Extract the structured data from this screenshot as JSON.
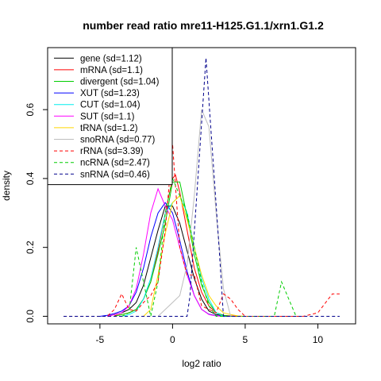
{
  "chart_data": {
    "type": "line",
    "title": "number read ratio mre11-H125.G1.1/xrn1.G1.2",
    "xlabel": "log2 ratio",
    "ylabel": "density",
    "xlim": [
      -8.6,
      12.6
    ],
    "ylim": [
      -0.022,
      0.78
    ],
    "xticks": [
      -5,
      0,
      5,
      10
    ],
    "xtick_labels": [
      "-5",
      "0",
      "5",
      "10"
    ],
    "yticks": [
      0.0,
      0.2,
      0.4,
      0.6
    ],
    "ytick_labels": [
      "0.0",
      "0.2",
      "0.4",
      "0.6"
    ],
    "legend_position": "top-left",
    "series": [
      {
        "name": "gene (sd=1.12)",
        "color": "#000000",
        "dash": "solid",
        "x": [
          -4.5,
          -4,
          -3.5,
          -3,
          -2.5,
          -2,
          -1.5,
          -1,
          -0.5,
          0,
          0.5,
          1,
          1.5,
          2,
          2.5,
          3,
          3.5,
          4,
          5
        ],
        "y": [
          0.0,
          0.005,
          0.01,
          0.02,
          0.04,
          0.09,
          0.17,
          0.25,
          0.32,
          0.32,
          0.27,
          0.19,
          0.11,
          0.05,
          0.015,
          0.005,
          0.002,
          0.0,
          0.0
        ]
      },
      {
        "name": "mRNA (sd=1.1)",
        "color": "#ff0000",
        "dash": "solid",
        "x": [
          -4,
          -3.5,
          -3,
          -2.5,
          -2,
          -1.5,
          -1,
          -0.5,
          0,
          0.2,
          0.5,
          1,
          1.5,
          2,
          2.5,
          3,
          3.5,
          4,
          4.5
        ],
        "y": [
          0.002,
          0.005,
          0.01,
          0.02,
          0.05,
          0.1,
          0.19,
          0.3,
          0.4,
          0.41,
          0.36,
          0.25,
          0.14,
          0.07,
          0.03,
          0.01,
          0.003,
          0.001,
          0.0
        ]
      },
      {
        "name": "divergent (sd=1.04)",
        "color": "#00cd00",
        "dash": "solid",
        "x": [
          -4,
          -3.5,
          -3,
          -2.5,
          -2,
          -1.5,
          -1,
          -0.5,
          0,
          0.5,
          1,
          1.5,
          2,
          2.5,
          3,
          3.5,
          4
        ],
        "y": [
          0.0,
          0.005,
          0.01,
          0.02,
          0.05,
          0.1,
          0.18,
          0.27,
          0.39,
          0.39,
          0.29,
          0.18,
          0.09,
          0.04,
          0.01,
          0.003,
          0.0
        ]
      },
      {
        "name": "XUT (sd=1.23)",
        "color": "#0000ff",
        "dash": "solid",
        "x": [
          -5,
          -4.5,
          -4,
          -3.5,
          -3,
          -2.5,
          -2,
          -1.5,
          -1,
          -0.5,
          0,
          0.5,
          1,
          1.5,
          2,
          2.5,
          3,
          3.5,
          4
        ],
        "y": [
          0.0,
          0.003,
          0.008,
          0.015,
          0.03,
          0.07,
          0.14,
          0.23,
          0.3,
          0.33,
          0.3,
          0.22,
          0.13,
          0.06,
          0.02,
          0.006,
          0.002,
          0.0,
          0.0
        ]
      },
      {
        "name": "CUT (sd=1.04)",
        "color": "#00eeee",
        "dash": "solid",
        "x": [
          -3.5,
          -3,
          -2.5,
          -2,
          -1.5,
          -1,
          -0.5,
          0,
          0.5,
          1,
          1.5,
          2,
          2.5,
          3,
          3.5
        ],
        "y": [
          0.0,
          0.005,
          0.015,
          0.05,
          0.11,
          0.2,
          0.3,
          0.33,
          0.35,
          0.3,
          0.2,
          0.11,
          0.05,
          0.01,
          0.0
        ]
      },
      {
        "name": "SUT (sd=1.1)",
        "color": "#ff00ff",
        "dash": "solid",
        "x": [
          -4.5,
          -4,
          -3.5,
          -3,
          -2.5,
          -2,
          -1.5,
          -1,
          -0.5,
          0,
          0.5,
          1,
          1.5,
          2,
          2.5,
          3,
          3.5
        ],
        "y": [
          0.0,
          0.005,
          0.01,
          0.03,
          0.08,
          0.18,
          0.3,
          0.37,
          0.32,
          0.28,
          0.2,
          0.12,
          0.06,
          0.02,
          0.005,
          0.001,
          0.0
        ]
      },
      {
        "name": "tRNA (sd=1.2)",
        "color": "#ffd700",
        "dash": "solid",
        "x": [
          -2,
          -1.5,
          -1,
          -0.5,
          0,
          0.5,
          1,
          1.5,
          2,
          2.5,
          3,
          3.5,
          4,
          4.5,
          5
        ],
        "y": [
          0.0,
          0.02,
          0.12,
          0.24,
          0.33,
          0.35,
          0.28,
          0.2,
          0.12,
          0.06,
          0.03,
          0.01,
          0.005,
          0.001,
          0.0
        ]
      },
      {
        "name": "snoRNA (sd=0.77)",
        "color": "#bebebe",
        "dash": "solid",
        "x": [
          -1,
          0,
          0.5,
          1,
          1.5,
          2,
          2.5,
          3,
          3.5,
          4
        ],
        "y": [
          0.0,
          0.04,
          0.06,
          0.15,
          0.35,
          0.6,
          0.55,
          0.3,
          0.08,
          0.0
        ]
      },
      {
        "name": "rRNA (sd=3.39)",
        "color": "#ff0000",
        "dash": "dashed",
        "x": [
          -7.5,
          -4.5,
          -4,
          -3.5,
          -3,
          -2.5,
          -2,
          -1.5,
          -1,
          -0.5,
          0,
          0.5,
          1,
          1.5,
          2,
          3,
          3.5,
          4,
          4.5,
          5,
          9,
          10,
          11,
          11.5
        ],
        "y": [
          0.0,
          0.0,
          0.02,
          0.065,
          0.02,
          0.015,
          0.04,
          0.06,
          0.1,
          0.25,
          0.5,
          0.2,
          0.12,
          0.12,
          0.03,
          0.01,
          0.065,
          0.05,
          0.02,
          0.0,
          0.0,
          0.01,
          0.065,
          0.065
        ]
      },
      {
        "name": "ncRNA (sd=2.47)",
        "color": "#00cd00",
        "dash": "dashed",
        "x": [
          -3.5,
          -3,
          -2.5,
          -2,
          -1.5,
          -1,
          -0.5,
          0,
          0.5,
          1,
          1.5,
          2,
          2.5,
          3,
          3.5,
          4,
          7,
          7.5,
          8,
          8.5
        ],
        "y": [
          0.0,
          0.01,
          0.2,
          0.1,
          0.0,
          0.1,
          0.3,
          0.4,
          0.35,
          0.3,
          0.2,
          0.1,
          0.03,
          0.0,
          0.0,
          0.0,
          0.0,
          0.1,
          0.05,
          0.0
        ]
      },
      {
        "name": "snRNA (sd=0.46)",
        "color": "#00008b",
        "dash": "dashed",
        "x": [
          -7.5,
          1,
          1.2,
          2.3,
          3.2,
          3.5,
          11.5
        ],
        "y": [
          0.0,
          0.0,
          0.06,
          0.75,
          0.2,
          0.0,
          0.0
        ]
      }
    ]
  }
}
